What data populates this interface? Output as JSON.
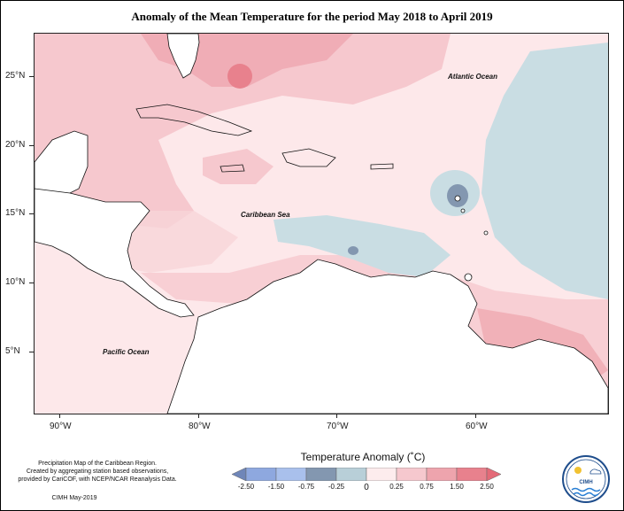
{
  "title": "Anomaly of the Mean Temperature for the period May 2018 to April 2019",
  "axes": {
    "y_ticks": [
      "25°N",
      "20°N",
      "15°N",
      "10°N",
      "5°N"
    ],
    "x_ticks": [
      "90°W",
      "80°W",
      "70°W",
      "60°W"
    ]
  },
  "labels": {
    "atlantic": "Atlantic Ocean",
    "caribbean": "Caribbean Sea",
    "pacific": "Pacific Ocean"
  },
  "legend": {
    "title": "Temperature Anomaly (˚C)",
    "tick_labels": [
      "-2.50",
      "-1.50",
      "-0.75",
      "-0.25",
      "0",
      "0.25",
      "0.75",
      "1.50",
      "2.50"
    ],
    "colors": [
      "#6f86b8",
      "#8ea8df",
      "#8397b0",
      "#b8cfd8",
      "#d7e6ea",
      "#fdeced",
      "#f6c8ce",
      "#eea4ad",
      "#e8818d",
      "#e46a78"
    ]
  },
  "footer": {
    "line1": "Precipitation Map of the Caribbean Region.",
    "line2": "Created by aggregating station based observations,",
    "line3": "provided by CariCOF, with NCEP/NCAR Reanalysis Data.",
    "date": "CIMH May-2019",
    "logo_text": "CIMH"
  }
}
